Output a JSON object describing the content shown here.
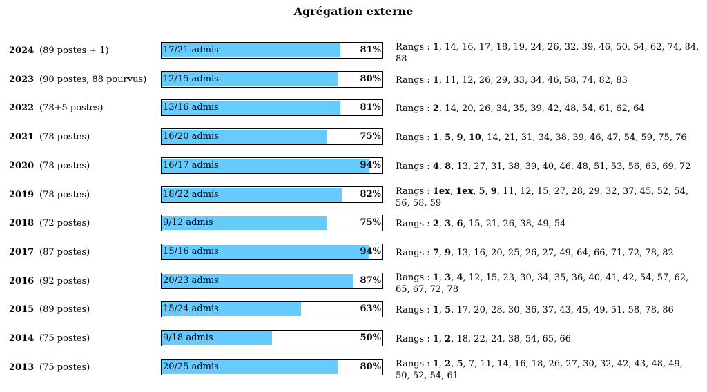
{
  "title": "Agrégation externe",
  "bar_color": "#66ccff",
  "chart_data": {
    "type": "bar",
    "title": "Agrégation externe",
    "categories": [
      "2024",
      "2023",
      "2022",
      "2021",
      "2020",
      "2019",
      "2018",
      "2017",
      "2016",
      "2015",
      "2014",
      "2013"
    ],
    "series": [
      {
        "values": [
          81,
          80,
          81,
          75,
          94,
          82,
          75,
          94,
          87,
          63,
          50,
          80
        ]
      }
    ],
    "ylim": [
      0,
      100
    ]
  },
  "rows": [
    {
      "year": "2024",
      "info": "(89 postes + 1)",
      "admis_label": "17/21 admis",
      "pct": 81,
      "pct_label": "81%",
      "ranks_label": "Rangs : ",
      "ranks": [
        {
          "v": "1",
          "b": true
        },
        {
          "v": "14"
        },
        {
          "v": "16"
        },
        {
          "v": "17"
        },
        {
          "v": "18"
        },
        {
          "v": "19"
        },
        {
          "v": "24"
        },
        {
          "v": "26"
        },
        {
          "v": "32"
        },
        {
          "v": "39"
        },
        {
          "v": "46"
        },
        {
          "v": "50"
        },
        {
          "v": "54"
        },
        {
          "v": "62"
        },
        {
          "v": "74"
        },
        {
          "v": "84"
        },
        {
          "v": "88"
        }
      ]
    },
    {
      "year": "2023",
      "info": "(90 postes, 88 pourvus)",
      "admis_label": "12/15 admis",
      "pct": 80,
      "pct_label": "80%",
      "ranks_label": "Rangs : ",
      "ranks": [
        {
          "v": "1",
          "b": true
        },
        {
          "v": "11"
        },
        {
          "v": "12"
        },
        {
          "v": "26"
        },
        {
          "v": "29"
        },
        {
          "v": "33"
        },
        {
          "v": "34"
        },
        {
          "v": "46"
        },
        {
          "v": "58"
        },
        {
          "v": "74"
        },
        {
          "v": "82"
        },
        {
          "v": "83"
        }
      ]
    },
    {
      "year": "2022",
      "info": "(78+5 postes)",
      "admis_label": "13/16 admis",
      "pct": 81,
      "pct_label": "81%",
      "ranks_label": "Rangs : ",
      "ranks": [
        {
          "v": "2",
          "b": true
        },
        {
          "v": "14"
        },
        {
          "v": "20"
        },
        {
          "v": "26"
        },
        {
          "v": "34"
        },
        {
          "v": "35"
        },
        {
          "v": "39"
        },
        {
          "v": "42"
        },
        {
          "v": "48"
        },
        {
          "v": "54"
        },
        {
          "v": "61"
        },
        {
          "v": "62"
        },
        {
          "v": "64"
        }
      ]
    },
    {
      "year": "2021",
      "info": "(78 postes)",
      "admis_label": "16/20 admis",
      "pct": 75,
      "pct_label": "75%",
      "ranks_label": "Rangs : ",
      "ranks": [
        {
          "v": "1",
          "b": true
        },
        {
          "v": "5",
          "b": true
        },
        {
          "v": "9",
          "b": true
        },
        {
          "v": "10",
          "b": true
        },
        {
          "v": "14"
        },
        {
          "v": "21"
        },
        {
          "v": "31"
        },
        {
          "v": "34"
        },
        {
          "v": "38"
        },
        {
          "v": "39"
        },
        {
          "v": "46"
        },
        {
          "v": "47"
        },
        {
          "v": "54"
        },
        {
          "v": "59"
        },
        {
          "v": "75"
        },
        {
          "v": "76"
        }
      ]
    },
    {
      "year": "2020",
      "info": "(78 postes)",
      "admis_label": "16/17 admis",
      "pct": 94,
      "pct_label": "94%",
      "ranks_label": "Rangs : ",
      "ranks": [
        {
          "v": "4",
          "b": true
        },
        {
          "v": "8",
          "b": true
        },
        {
          "v": "13"
        },
        {
          "v": "27"
        },
        {
          "v": "31"
        },
        {
          "v": "38"
        },
        {
          "v": "39"
        },
        {
          "v": "40"
        },
        {
          "v": "46"
        },
        {
          "v": "48"
        },
        {
          "v": "51"
        },
        {
          "v": "53"
        },
        {
          "v": "56"
        },
        {
          "v": "63"
        },
        {
          "v": "69"
        },
        {
          "v": "72"
        }
      ]
    },
    {
      "year": "2019",
      "info": "(78 postes)",
      "admis_label": "18/22 admis",
      "pct": 82,
      "pct_label": "82%",
      "ranks_label": "Rangs : ",
      "ranks": [
        {
          "v": "1ex",
          "b": true
        },
        {
          "v": "1ex",
          "b": true
        },
        {
          "v": "5",
          "b": true
        },
        {
          "v": "9",
          "b": true
        },
        {
          "v": "11"
        },
        {
          "v": "12"
        },
        {
          "v": "15"
        },
        {
          "v": "27"
        },
        {
          "v": "28"
        },
        {
          "v": "29"
        },
        {
          "v": "32"
        },
        {
          "v": "37"
        },
        {
          "v": "45"
        },
        {
          "v": "52"
        },
        {
          "v": "54"
        },
        {
          "v": "56"
        },
        {
          "v": "58"
        },
        {
          "v": "59"
        }
      ]
    },
    {
      "year": "2018",
      "info": "(72 postes)",
      "admis_label": "9/12 admis",
      "pct": 75,
      "pct_label": "75%",
      "ranks_label": "Rangs : ",
      "ranks": [
        {
          "v": "2",
          "b": true
        },
        {
          "v": "3",
          "b": true
        },
        {
          "v": "6",
          "b": true
        },
        {
          "v": "15"
        },
        {
          "v": "21"
        },
        {
          "v": "26"
        },
        {
          "v": "38"
        },
        {
          "v": "49"
        },
        {
          "v": "54"
        }
      ]
    },
    {
      "year": "2017",
      "info": "(87 postes)",
      "admis_label": "15/16 admis",
      "pct": 94,
      "pct_label": "94%",
      "ranks_label": "Rangs : ",
      "ranks": [
        {
          "v": "7",
          "b": true
        },
        {
          "v": "9",
          "b": true
        },
        {
          "v": "13"
        },
        {
          "v": "16"
        },
        {
          "v": "20"
        },
        {
          "v": "25"
        },
        {
          "v": "26"
        },
        {
          "v": "27"
        },
        {
          "v": "49"
        },
        {
          "v": "64"
        },
        {
          "v": "66"
        },
        {
          "v": "71"
        },
        {
          "v": "72"
        },
        {
          "v": "78"
        },
        {
          "v": "82"
        }
      ]
    },
    {
      "year": "2016",
      "info": "(92 postes)",
      "admis_label": "20/23 admis",
      "pct": 87,
      "pct_label": "87%",
      "ranks_label": "Rangs : ",
      "ranks": [
        {
          "v": "1",
          "b": true
        },
        {
          "v": "3",
          "b": true
        },
        {
          "v": "4",
          "b": true
        },
        {
          "v": "12"
        },
        {
          "v": "15"
        },
        {
          "v": "23"
        },
        {
          "v": "30"
        },
        {
          "v": "34"
        },
        {
          "v": "35"
        },
        {
          "v": "36"
        },
        {
          "v": "40"
        },
        {
          "v": "41"
        },
        {
          "v": "42"
        },
        {
          "v": "54"
        },
        {
          "v": "57"
        },
        {
          "v": "62"
        },
        {
          "v": "65"
        },
        {
          "v": "67"
        },
        {
          "v": "72"
        },
        {
          "v": "78"
        }
      ]
    },
    {
      "year": "2015",
      "info": "(89 postes)",
      "admis_label": "15/24 admis",
      "pct": 63,
      "pct_label": "63%",
      "ranks_label": "Rangs : ",
      "ranks": [
        {
          "v": "1",
          "b": true
        },
        {
          "v": "5",
          "b": true
        },
        {
          "v": "17"
        },
        {
          "v": "20"
        },
        {
          "v": "28"
        },
        {
          "v": "30"
        },
        {
          "v": "36"
        },
        {
          "v": "37"
        },
        {
          "v": "43"
        },
        {
          "v": "45"
        },
        {
          "v": "49"
        },
        {
          "v": "51"
        },
        {
          "v": "58"
        },
        {
          "v": "78"
        },
        {
          "v": "86"
        }
      ]
    },
    {
      "year": "2014",
      "info": "(75 postes)",
      "admis_label": "9/18 admis",
      "pct": 50,
      "pct_label": "50%",
      "ranks_label": "Rangs : ",
      "ranks": [
        {
          "v": "1",
          "b": true
        },
        {
          "v": "2",
          "b": true
        },
        {
          "v": "18"
        },
        {
          "v": "22"
        },
        {
          "v": "24"
        },
        {
          "v": "38"
        },
        {
          "v": "54"
        },
        {
          "v": "65"
        },
        {
          "v": "66"
        }
      ]
    },
    {
      "year": "2013",
      "info": "(75 postes)",
      "admis_label": "20/25 admis",
      "pct": 80,
      "pct_label": "80%",
      "ranks_label": "Rangs : ",
      "ranks": [
        {
          "v": "1",
          "b": true
        },
        {
          "v": "2",
          "b": true
        },
        {
          "v": "5",
          "b": true
        },
        {
          "v": "7"
        },
        {
          "v": "11"
        },
        {
          "v": "14"
        },
        {
          "v": "16"
        },
        {
          "v": "18"
        },
        {
          "v": "26"
        },
        {
          "v": "27"
        },
        {
          "v": "30"
        },
        {
          "v": "32"
        },
        {
          "v": "42"
        },
        {
          "v": "43"
        },
        {
          "v": "48"
        },
        {
          "v": "49"
        },
        {
          "v": "50"
        },
        {
          "v": "52"
        },
        {
          "v": "54"
        },
        {
          "v": "61"
        }
      ]
    }
  ]
}
